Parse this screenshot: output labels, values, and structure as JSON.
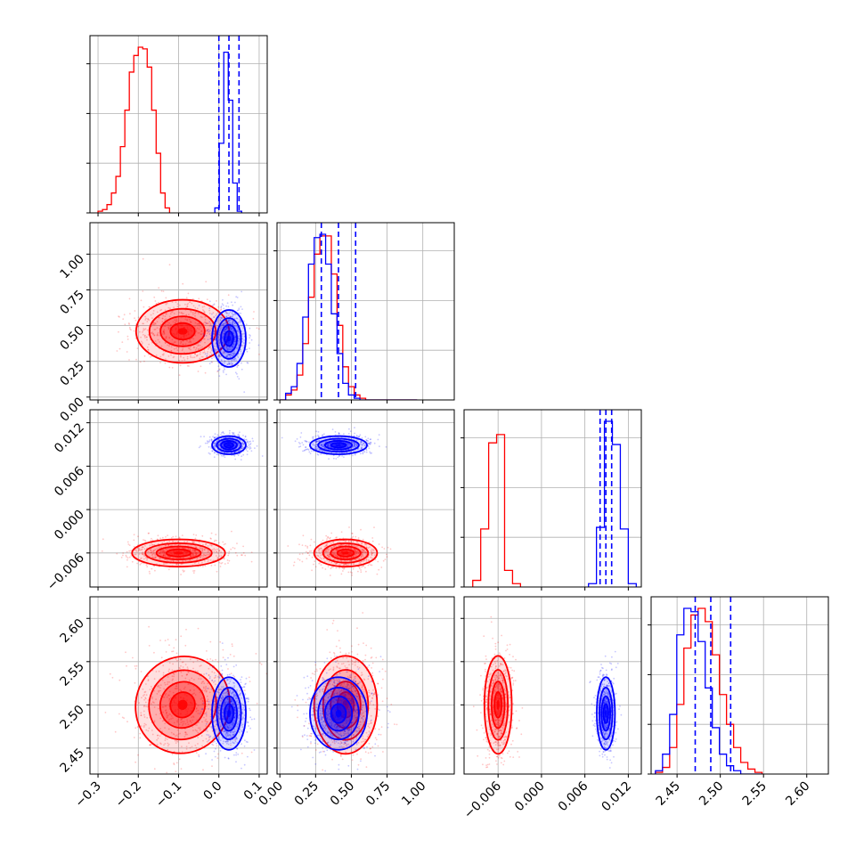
{
  "chart_data": {
    "type": "corner",
    "title": "",
    "series": [
      {
        "name": "",
        "color": "#ff0000"
      },
      {
        "name": "",
        "color": "#0000ff"
      }
    ],
    "parameters": [
      {
        "ticks": [
          -0.3,
          -0.2,
          -0.1,
          0.0,
          0.1
        ],
        "tick_labels": [
          "−0.3",
          "−0.2",
          "−0.1",
          "0.0",
          "0.1"
        ],
        "range": [
          -0.32,
          0.12
        ]
      },
      {
        "ticks": [
          0.0,
          0.25,
          0.5,
          0.75,
          1.0
        ],
        "tick_labels": [
          "0.00",
          "0.25",
          "0.50",
          "0.75",
          "1.00"
        ],
        "range": [
          -0.02,
          1.22
        ]
      },
      {
        "ticks": [
          -0.006,
          0.0,
          0.006,
          0.012
        ],
        "tick_labels": [
          "−0.006",
          "0.000",
          "0.006",
          "0.012"
        ],
        "range": [
          -0.0107,
          0.0138
        ]
      },
      {
        "ticks": [
          2.45,
          2.5,
          2.55,
          2.6
        ],
        "tick_labels": [
          "2.45",
          "2.50",
          "2.55",
          "2.60"
        ],
        "range": [
          2.42,
          2.625
        ]
      }
    ],
    "blue_quantiles": [
      [
        0.0,
        0.025,
        0.05
      ],
      [
        0.29,
        0.41,
        0.53
      ],
      [
        0.0081,
        0.0089,
        0.0097
      ],
      [
        2.471,
        2.489,
        2.512
      ]
    ],
    "histograms": [
      {
        "param": 0,
        "red_bins": [
          -0.3,
          0.02,
          0.0111
        ],
        "red_counts": [
          1,
          2,
          5,
          12,
          22,
          40,
          62,
          85,
          95,
          100,
          99,
          88,
          62,
          36,
          12,
          3
        ],
        "blue_bins": [
          -0.01,
          0.1,
          0.0111
        ],
        "blue_counts": [
          3,
          42,
          97,
          68,
          18,
          1
        ]
      },
      {
        "param": 1,
        "red_bins": [
          0.0,
          1.0,
          0.04
        ],
        "red_counts": [
          0,
          3,
          6,
          15,
          34,
          62,
          88,
          99,
          99,
          76,
          45,
          20,
          8,
          3,
          1,
          0,
          0,
          0,
          0,
          0,
          0,
          0,
          0,
          0
        ],
        "blue_bins": [
          0.0,
          1.0,
          0.04
        ],
        "blue_counts": [
          0,
          4,
          8,
          22,
          50,
          82,
          98,
          100,
          82,
          52,
          28,
          10,
          3,
          1,
          0,
          0,
          0,
          0,
          0,
          0,
          0,
          0,
          0,
          0
        ]
      },
      {
        "param": 2,
        "red_bins": [
          -0.0095,
          -0.0035,
          0.0011
        ],
        "red_counts": [
          4,
          35,
          87,
          92,
          10,
          2
        ],
        "blue_bins": [
          0.0065,
          0.0121,
          0.0011
        ],
        "blue_counts": [
          2,
          36,
          100,
          86,
          35,
          2
        ]
      },
      {
        "param": 3,
        "red_bins": [
          2.425,
          2.61,
          0.00822
        ],
        "red_counts": [
          1,
          4,
          16,
          42,
          76,
          96,
          100,
          92,
          72,
          48,
          30,
          16,
          7,
          3,
          1
        ],
        "blue_bins": [
          2.425,
          2.61,
          0.00822
        ],
        "blue_counts": [
          2,
          12,
          36,
          84,
          100,
          98,
          80,
          52,
          28,
          12,
          5,
          2,
          0,
          0,
          0
        ]
      }
    ],
    "joint_distributions": [
      {
        "row": 1,
        "col": 0,
        "red": {
          "center": [
            -0.09,
            0.46
          ],
          "spread": [
            0.055,
            0.105
          ]
        },
        "blue": {
          "center": [
            0.025,
            0.41
          ],
          "spread": [
            0.02,
            0.095
          ]
        }
      },
      {
        "row": 2,
        "col": 0,
        "red": {
          "center": [
            -0.1,
            -0.006
          ],
          "spread": [
            0.055,
            0.0009
          ]
        },
        "blue": {
          "center": [
            0.025,
            0.0089
          ],
          "spread": [
            0.02,
            0.0006
          ]
        }
      },
      {
        "row": 2,
        "col": 1,
        "red": {
          "center": [
            0.46,
            -0.006
          ],
          "spread": [
            0.105,
            0.0009
          ]
        },
        "blue": {
          "center": [
            0.41,
            0.0089
          ],
          "spread": [
            0.095,
            0.0006
          ]
        }
      },
      {
        "row": 3,
        "col": 0,
        "red": {
          "center": [
            -0.09,
            2.5
          ],
          "spread": [
            0.055,
            0.027
          ]
        },
        "blue": {
          "center": [
            0.025,
            2.49
          ],
          "spread": [
            0.02,
            0.02
          ]
        }
      },
      {
        "row": 3,
        "col": 1,
        "red": {
          "center": [
            0.46,
            2.5
          ],
          "spread": [
            0.105,
            0.027
          ]
        },
        "blue": {
          "center": [
            0.41,
            2.49
          ],
          "spread": [
            0.095,
            0.02
          ]
        }
      },
      {
        "row": 3,
        "col": 2,
        "red": {
          "center": [
            -0.006,
            2.5
          ],
          "spread": [
            0.0009,
            0.027
          ]
        },
        "blue": {
          "center": [
            0.0089,
            2.49
          ],
          "spread": [
            0.0006,
            0.02
          ]
        }
      }
    ],
    "grid": true,
    "legend": "none"
  }
}
